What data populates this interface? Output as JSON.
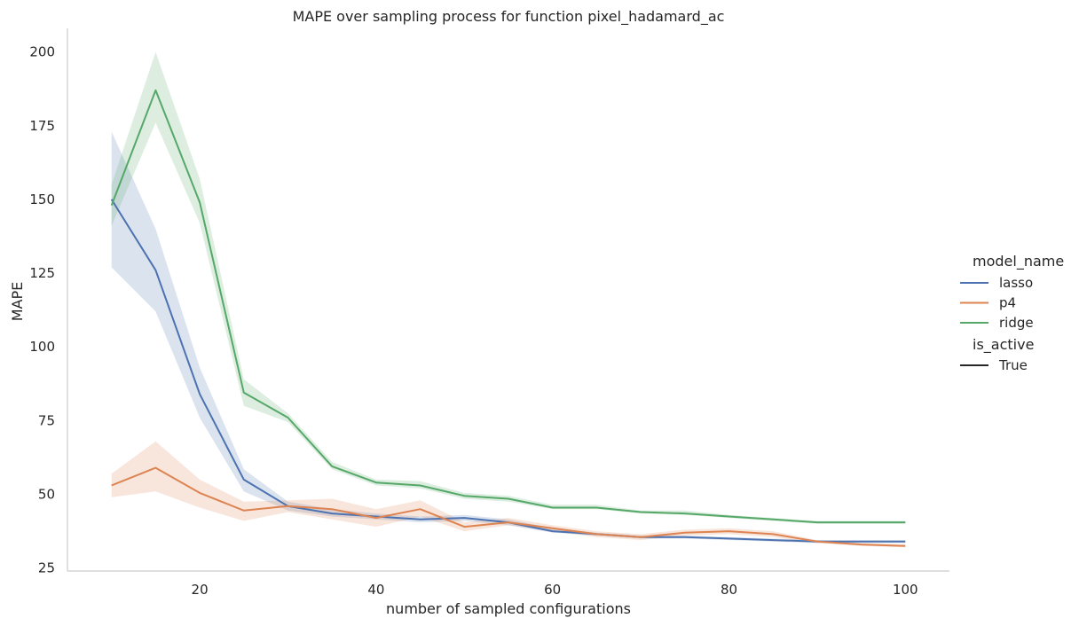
{
  "chart_data": {
    "type": "line",
    "title": "MAPE over sampling process for function pixel_hadamard_ac",
    "xlabel": "number of sampled configurations",
    "ylabel": "MAPE",
    "xlim": [
      5,
      105
    ],
    "ylim": [
      24,
      208
    ],
    "xticks": [
      20,
      40,
      60,
      80,
      100
    ],
    "yticks": [
      25,
      50,
      75,
      100,
      125,
      150,
      175,
      200
    ],
    "grid": false,
    "legend": {
      "position": "right",
      "hue_title": "model_name",
      "style_title": "is_active",
      "style_entries": [
        {
          "label": "True",
          "color": "#262626"
        }
      ]
    },
    "x": [
      10,
      15,
      20,
      25,
      30,
      35,
      40,
      45,
      50,
      55,
      60,
      65,
      70,
      75,
      80,
      85,
      90,
      95,
      100
    ],
    "series": [
      {
        "name": "lasso",
        "color": "#4c72b0",
        "values": [
          150,
          126,
          84,
          55,
          46,
          43.5,
          42.5,
          41.5,
          42,
          40.5,
          37.5,
          36.5,
          35.5,
          35.5,
          35,
          34.5,
          34,
          34,
          34
        ],
        "lower": [
          127,
          112,
          76,
          51,
          44.5,
          42.5,
          41.5,
          40.5,
          41,
          39.5,
          37,
          36,
          35,
          35,
          34.5,
          34,
          33.5,
          33.5,
          33.5
        ],
        "upper": [
          173,
          140,
          93,
          58.5,
          47.5,
          45,
          43.5,
          42.5,
          43,
          41.5,
          38.5,
          37,
          36,
          36,
          35.5,
          35,
          34.5,
          34.5,
          34.5
        ]
      },
      {
        "name": "p4",
        "color": "#dd8452",
        "values": [
          53,
          59,
          50.5,
          44.5,
          46,
          45,
          42,
          45,
          39,
          40.5,
          38.5,
          36.5,
          35.5,
          37,
          37.5,
          36.5,
          34,
          33,
          32.5
        ],
        "lower": [
          49,
          51,
          45.5,
          41,
          44,
          41.5,
          39,
          42.5,
          37.5,
          39.5,
          37.5,
          35.5,
          34.5,
          36,
          36.5,
          35.5,
          33.5,
          32.5,
          32
        ],
        "upper": [
          57,
          68,
          55,
          47.5,
          48,
          48.5,
          45,
          48,
          40.5,
          42,
          39.5,
          37.5,
          36.5,
          38,
          38.5,
          37.5,
          34.5,
          33.5,
          33
        ]
      },
      {
        "name": "ridge",
        "color": "#55a868",
        "values": [
          148,
          187,
          149,
          84.5,
          76,
          59.5,
          54,
          53,
          49.5,
          48.5,
          45.5,
          45.5,
          44,
          43.5,
          42.5,
          41.5,
          40.5,
          40.5,
          40.5
        ],
        "lower": [
          141,
          176,
          142,
          80,
          74.5,
          58.5,
          53,
          52,
          48.5,
          47.5,
          45,
          45,
          43.5,
          43,
          42,
          41,
          40,
          40,
          40
        ],
        "upper": [
          155,
          200,
          157,
          89,
          77.5,
          61,
          55,
          54.5,
          50.5,
          49.5,
          46.5,
          46.5,
          44.5,
          44.5,
          43,
          42,
          41,
          41,
          41
        ]
      }
    ]
  }
}
